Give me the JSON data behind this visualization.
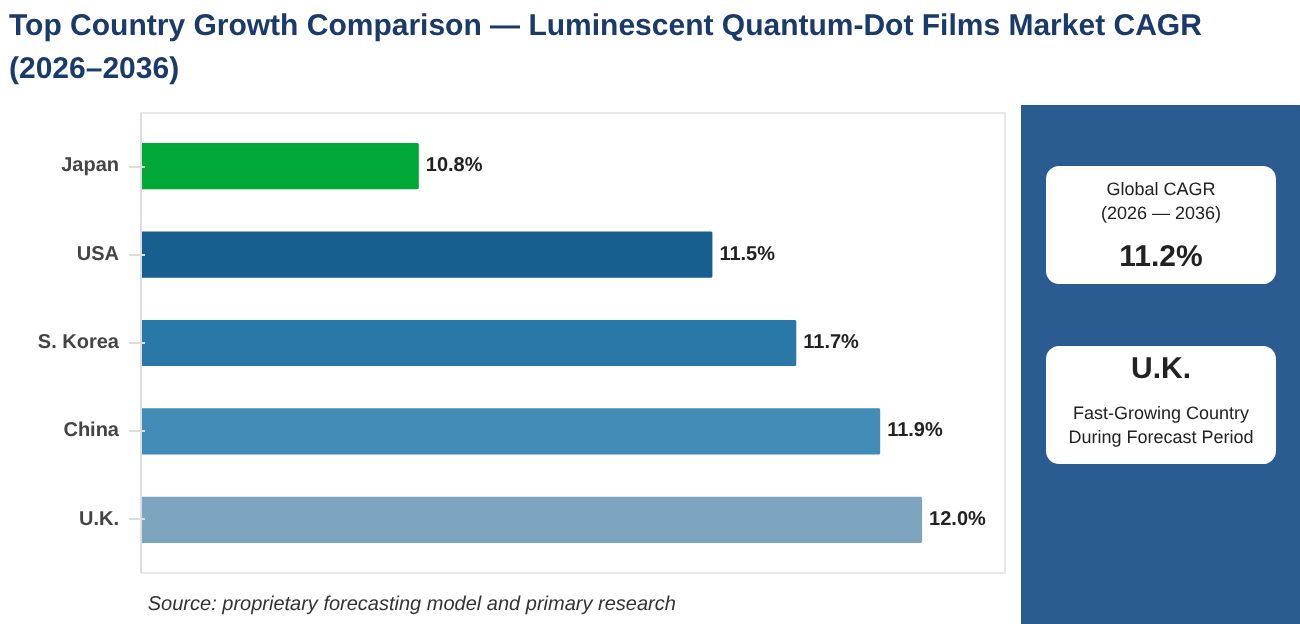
{
  "chart_data": {
    "type": "bar",
    "orientation": "horizontal",
    "title": "Top Country Growth Comparison — Luminescent Quantum-Dot Films Market CAGR (2026–2036)",
    "categories": [
      "Japan",
      "USA",
      "S. Korea",
      "China",
      "U.K."
    ],
    "values": [
      10.8,
      11.5,
      11.7,
      11.9,
      12.0
    ],
    "value_labels": [
      "10.8%",
      "11.5%",
      "11.7%",
      "11.9%",
      "12.0%"
    ],
    "colors": [
      "#00a838",
      "#175f8f",
      "#2a78a8",
      "#438cb8",
      "#7ea5c0"
    ],
    "xlim": [
      10.14,
      12.2
    ],
    "tick_labels": "y",
    "grid": false,
    "annotations": [
      "Source: proprietary forecasting model and primary research",
      "Global CAGR (2026 — 2036)",
      "11.2%",
      "U.K.",
      "Fast-Growing Country During Forecast Period"
    ]
  }
}
